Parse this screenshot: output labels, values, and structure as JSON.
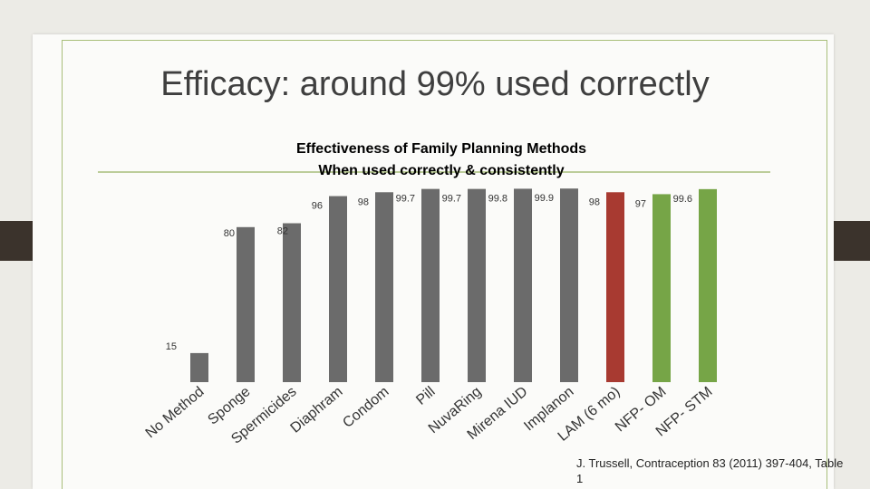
{
  "slide": {
    "title": "Efficacy: around 99% used correctly",
    "citation": "J. Trussell, Contraception 83 (2011) 397-404, Table 1"
  },
  "chart_data": {
    "type": "bar",
    "title": "Effectiveness of Family Planning Methods",
    "subtitle": "When used correctly & consistently",
    "xlabel": "",
    "ylabel": "",
    "ylim": [
      0,
      100
    ],
    "categories": [
      "No Method",
      "Sponge",
      "Spermicides",
      "Diaphram",
      "Condom",
      "Pill",
      "NuvaRing",
      "Mirena IUD",
      "Implanon",
      "LAM (6 mo)",
      "NFP- OM",
      "NFP- STM"
    ],
    "values": [
      15,
      80,
      82,
      96,
      98,
      99.7,
      99.7,
      99.8,
      99.9,
      98,
      97,
      99.6
    ],
    "value_labels": [
      "15",
      "80",
      "82",
      "96",
      "98",
      "99.7",
      "99.7",
      "99.8",
      "99.9",
      "98",
      "97",
      "99.6"
    ],
    "colors": [
      "#6b6b6b",
      "#6b6b6b",
      "#6b6b6b",
      "#6b6b6b",
      "#6b6b6b",
      "#6b6b6b",
      "#6b6b6b",
      "#6b6b6b",
      "#6b6b6b",
      "#a83a31",
      "#76a547",
      "#76a547"
    ],
    "grid": false,
    "legend": "none"
  }
}
